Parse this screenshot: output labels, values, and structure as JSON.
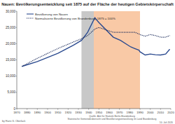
{
  "chart_data": {
    "type": "line",
    "title": "Nauen: Bevölkerungsentwicklung seit 1875 auf der Fläche der heutigen Gebietskörperschaft",
    "x": [
      1875,
      1890,
      1910,
      1925,
      1933,
      1939,
      1946,
      1950,
      1964,
      1971,
      1981,
      1985,
      1989,
      1990,
      1995,
      2000,
      2005,
      2010,
      2015,
      2019
    ],
    "series": [
      {
        "name": "Bevölkerung von Nauen",
        "color": "#2b4a8f",
        "line_style": "solid",
        "values": [
          13000,
          14500,
          17000,
          19500,
          21000,
          23500,
          28000,
          26500,
          22000,
          21000,
          19000,
          18500,
          18000,
          17500,
          16500,
          16800,
          16600,
          16500,
          16800,
          18300
        ]
      },
      {
        "name": "Normalisierte Bevölkerung von Brandenburg, 1875 = 100%",
        "color": "#1a2a5a",
        "line_style": "dotted",
        "values": [
          13000,
          15500,
          18500,
          20500,
          21500,
          22500,
          24500,
          25000,
          23500,
          23500,
          23500,
          23500,
          23000,
          22800,
          22300,
          22800,
          22500,
          22000,
          22000,
          22500
        ]
      }
    ],
    "shaded_periods": [
      {
        "start": 1933,
        "end": 1945,
        "color": "#c8c8c8"
      },
      {
        "start": 1945,
        "end": 1990,
        "color": "#f9c9a6"
      }
    ],
    "xlim": [
      1870,
      2020
    ],
    "xticks": [
      1870,
      1880,
      1890,
      1900,
      1910,
      1920,
      1930,
      1940,
      1950,
      1960,
      1970,
      1980,
      1990,
      2000,
      2010,
      2020
    ],
    "ylim": [
      0,
      30000
    ],
    "yticks": [
      0,
      {
        "value": 5000,
        "label": "5,000"
      },
      {
        "value": 10000,
        "label": "10,000"
      },
      {
        "value": 15000,
        "label": "15,000"
      },
      {
        "value": 20000,
        "label": "20,000"
      },
      {
        "value": 25000,
        "label": "25,000"
      },
      {
        "value": 30000,
        "label": "30,000"
      }
    ],
    "grid": false,
    "legend": "top-left",
    "author": "by Hans G. Oberlack",
    "source": [
      "Quelle: Amt für Statistik Berlin-Brandenburg",
      "Statistische Gemeindeübersicht und Bevölkerungsentwicklung im Land Brandenburg"
    ],
    "date": "10. Juli 2020"
  }
}
